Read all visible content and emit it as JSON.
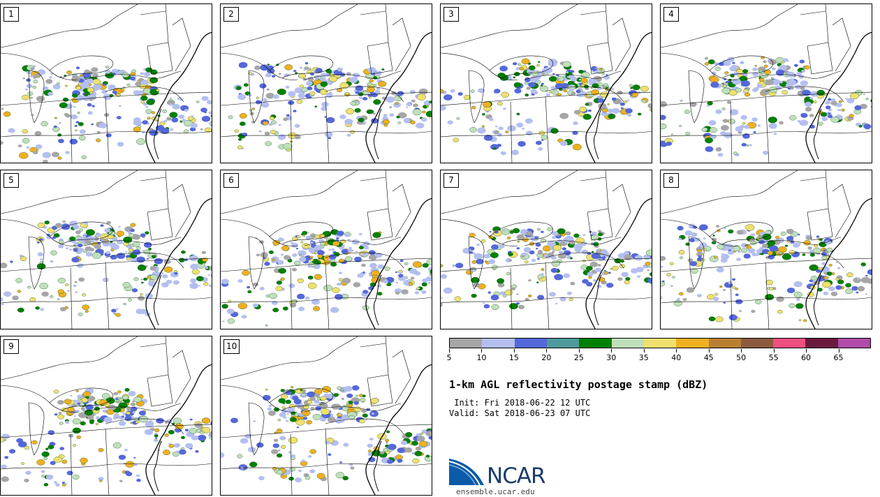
{
  "panels": [
    {
      "label": "1"
    },
    {
      "label": "2"
    },
    {
      "label": "3"
    },
    {
      "label": "4"
    },
    {
      "label": "5"
    },
    {
      "label": "6"
    },
    {
      "label": "7"
    },
    {
      "label": "8"
    },
    {
      "label": "9"
    },
    {
      "label": "10"
    }
  ],
  "colorbar": {
    "colors": [
      "#a6a6a6",
      "#b4bff0",
      "#5468d9",
      "#4e9a9c",
      "#008000",
      "#bfe0bb",
      "#f0e06e",
      "#f0b020",
      "#b98032",
      "#8c5a3e",
      "#f05080",
      "#6b1a3e",
      "#b04ca8"
    ],
    "ticks": [
      "5",
      "10",
      "15",
      "20",
      "25",
      "30",
      "35",
      "40",
      "45",
      "50",
      "55",
      "60",
      "65"
    ]
  },
  "title": "1-km AGL reflectivity postage stamp (dBZ)",
  "init": " Init: Fri 2018-06-22 12 UTC",
  "valid": "Valid: Sat 2018-06-23 07 UTC",
  "logo": {
    "text": "NCAR",
    "url": "ensemble.ucar.edu",
    "icon": "ncar-logo-icon"
  }
}
